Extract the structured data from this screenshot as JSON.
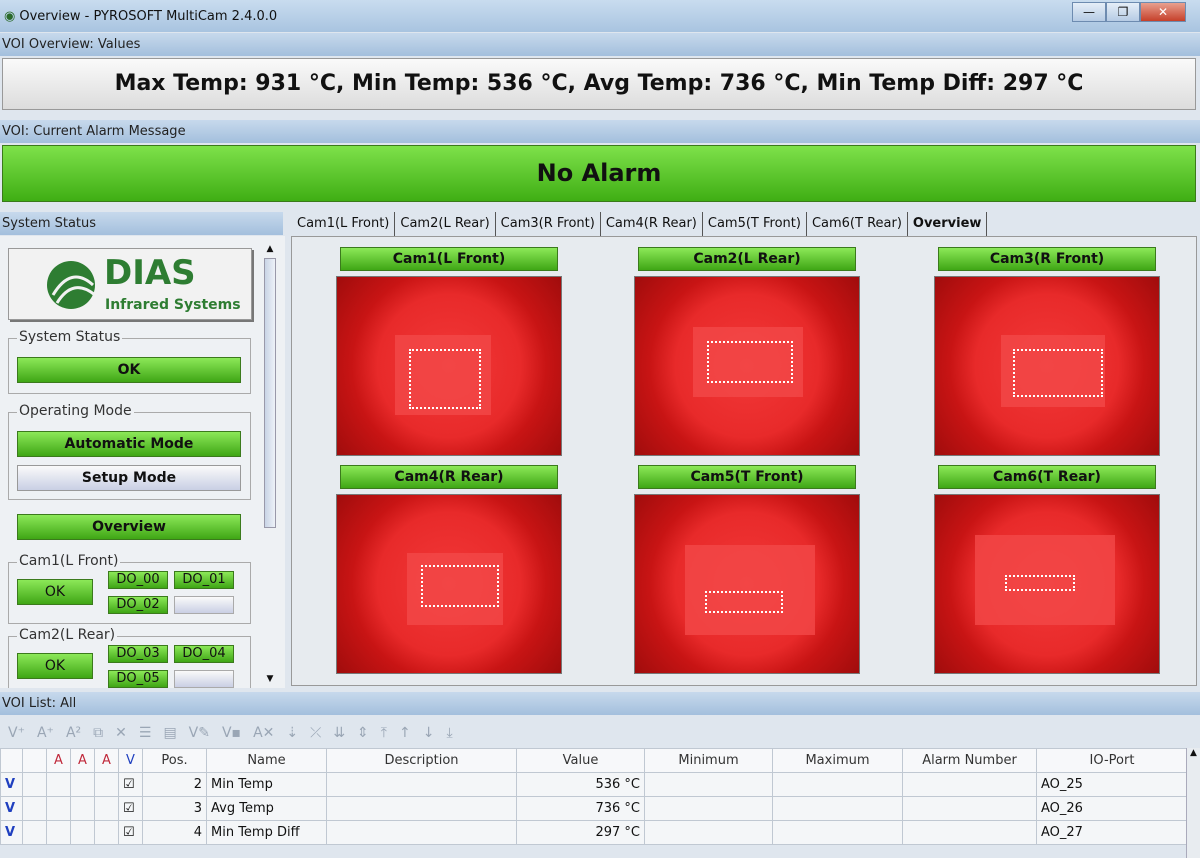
{
  "window": {
    "title": "Overview - PYROSOFT MultiCam 2.4.0.0",
    "minimize": "—",
    "maximize": "❐",
    "close": "✕"
  },
  "voi_overview": {
    "label": "VOI Overview: Values",
    "values_text": "Max Temp: 931 °C, Min Temp: 536 °C, Avg Temp: 736 °C, Min Temp Diff: 297 °C"
  },
  "alarm": {
    "label": "VOI: Current Alarm Message",
    "message": "No Alarm"
  },
  "sidebar": {
    "label": "System Status",
    "logo": {
      "brand": "DIAS",
      "sub": "Infrared Systems"
    },
    "system_status": {
      "label": "System Status",
      "value": "OK"
    },
    "operating_mode": {
      "label": "Operating Mode",
      "automatic": "Automatic Mode",
      "setup": "Setup Mode"
    },
    "overview_button": "Overview",
    "cams": [
      {
        "label": "Cam1(L Front)",
        "status": "OK",
        "outputs": [
          "DO_00",
          "DO_01",
          "DO_02"
        ]
      },
      {
        "label": "Cam2(L Rear)",
        "status": "OK",
        "outputs": [
          "DO_03",
          "DO_04",
          "DO_05"
        ]
      }
    ]
  },
  "tabs": [
    {
      "label": "Cam1(L Front)"
    },
    {
      "label": "Cam2(L Rear)"
    },
    {
      "label": "Cam3(R Front)"
    },
    {
      "label": "Cam4(R Rear)"
    },
    {
      "label": "Cam5(T Front)"
    },
    {
      "label": "Cam6(T Rear)"
    },
    {
      "label": "Overview",
      "active": true
    }
  ],
  "cameras": [
    {
      "label": "Cam1(L Front)"
    },
    {
      "label": "Cam2(L Rear)"
    },
    {
      "label": "Cam3(R Front)"
    },
    {
      "label": "Cam4(R Rear)"
    },
    {
      "label": "Cam5(T Front)"
    },
    {
      "label": "Cam6(T Rear)"
    }
  ],
  "voi_list": {
    "label": "VOI List: All",
    "columns": [
      "Pos.",
      "Name",
      "Description",
      "Value",
      "Minimum",
      "Maximum",
      "Alarm Number",
      "IO-Port"
    ],
    "rows": [
      {
        "flag": "V",
        "pos": "2",
        "name": "Min Temp",
        "description": "",
        "value": "536 °C",
        "minimum": "",
        "maximum": "",
        "alarm": "",
        "io": "AO_25"
      },
      {
        "flag": "V",
        "pos": "3",
        "name": "Avg Temp",
        "description": "",
        "value": "736 °C",
        "minimum": "",
        "maximum": "",
        "alarm": "",
        "io": "AO_26"
      },
      {
        "flag": "V",
        "pos": "4",
        "name": "Min Temp Diff",
        "description": "",
        "value": "297 °C",
        "minimum": "",
        "maximum": "",
        "alarm": "",
        "io": "AO_27"
      }
    ]
  },
  "colors": {
    "ok_green": "#4fc21f",
    "title_blue": "#a9c4e0",
    "ir_red": "#e82a2a"
  }
}
